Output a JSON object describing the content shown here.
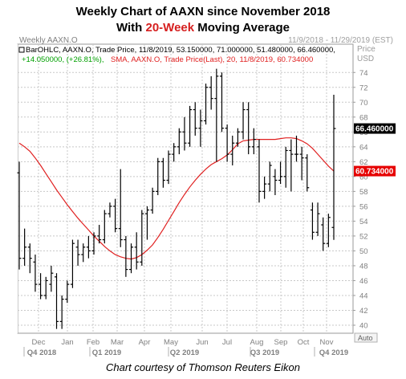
{
  "title_line1": "Weekly Chart of AAXN since November 2018",
  "title_line2_pre": "With ",
  "title_line2_hl": "20-Week",
  "title_line2_post": " Moving Average",
  "panel_label": "Weekly AAXN.O",
  "date_range": "11/9/2018 - 11/29/2019 (EST)",
  "legend_ohlc_line1": "BarOHLC, AAXN.O, Trade Price, 11/8/2019, 53.150000, 71.000000, 51.480000, 66.460000,",
  "legend_ohlc_line2": "+14.050000, (+26.81%),",
  "legend_sma": "SMA, AAXN.O, Trade Price(Last),  20,  11/8/2019, 60.734000",
  "price_header": "Price",
  "currency": "USD",
  "auto_label": "Auto",
  "credit": "Chart courtesy of Thomson Reuters Eikon",
  "colors": {
    "sma": "#e02020",
    "bars": "#000000",
    "grid": "#c8c8c8",
    "sma_tag": "#e60000"
  },
  "chart_data": {
    "type": "ohlc",
    "ylim": [
      40,
      75
    ],
    "y_ticks": [
      "40",
      "42",
      "44",
      "46",
      "48",
      "50",
      "52",
      "54",
      "56",
      "58",
      "60",
      "62",
      "64",
      "66",
      "68",
      "70",
      "72",
      "74"
    ],
    "x_month_labels": [
      "Dec",
      "Jan",
      "Feb",
      "Mar",
      "Apr",
      "May",
      "Jun",
      "Jul",
      "Aug",
      "Sep",
      "Oct",
      "Nov"
    ],
    "x_quarter_labels": [
      "Q4 2018",
      "Q1 2019",
      "Q2 2019",
      "Q3 2019",
      "Q4 2019"
    ],
    "last_price": "66.460000",
    "sma_value": "60.734000",
    "series": [
      {
        "name": "BarOHLC",
        "bars": [
          [
            60.5,
            62.0,
            47.5,
            49.0
          ],
          [
            49.0,
            53.0,
            48.0,
            50.5
          ],
          [
            50.5,
            51.0,
            47.0,
            49.0
          ],
          [
            48.5,
            49.5,
            44.5,
            45.5
          ],
          [
            45.5,
            47.0,
            43.5,
            44.0
          ],
          [
            44.0,
            46.5,
            43.5,
            46.0
          ],
          [
            45.5,
            48.0,
            44.5,
            47.0
          ],
          [
            46.5,
            47.0,
            39.5,
            40.5
          ],
          [
            40.5,
            44.0,
            39.5,
            43.5
          ],
          [
            43.5,
            46.0,
            43.0,
            45.5
          ],
          [
            45.5,
            51.5,
            45.0,
            51.0
          ],
          [
            50.5,
            51.5,
            48.0,
            49.5
          ],
          [
            49.5,
            51.0,
            48.5,
            50.5
          ],
          [
            50.5,
            52.0,
            49.0,
            50.0
          ],
          [
            50.0,
            52.5,
            49.5,
            52.0
          ],
          [
            52.0,
            53.5,
            51.0,
            51.5
          ],
          [
            51.5,
            55.5,
            51.0,
            55.0
          ],
          [
            55.0,
            56.5,
            54.5,
            56.0
          ],
          [
            56.0,
            57.0,
            52.5,
            53.0
          ],
          [
            53.0,
            61.0,
            50.5,
            51.5
          ],
          [
            51.5,
            52.0,
            46.5,
            47.5
          ],
          [
            47.5,
            51.0,
            47.0,
            50.5
          ],
          [
            50.5,
            52.5,
            47.5,
            48.5
          ],
          [
            48.5,
            55.5,
            48.0,
            55.0
          ],
          [
            55.0,
            56.0,
            51.5,
            55.5
          ],
          [
            55.5,
            58.5,
            55.0,
            58.0
          ],
          [
            58.0,
            62.5,
            57.5,
            62.0
          ],
          [
            62.0,
            62.5,
            58.5,
            59.5
          ],
          [
            59.5,
            63.5,
            59.0,
            63.0
          ],
          [
            63.0,
            64.5,
            62.0,
            64.0
          ],
          [
            64.0,
            66.5,
            63.0,
            66.0
          ],
          [
            66.0,
            68.0,
            63.5,
            64.5
          ],
          [
            64.5,
            69.5,
            64.0,
            69.0
          ],
          [
            69.0,
            70.0,
            65.5,
            66.5
          ],
          [
            66.5,
            69.0,
            64.0,
            67.5
          ],
          [
            67.5,
            72.5,
            67.0,
            72.0
          ],
          [
            72.0,
            73.5,
            69.0,
            70.5
          ],
          [
            70.5,
            74.5,
            62.0,
            73.5
          ],
          [
            73.5,
            74.0,
            66.0,
            66.5
          ],
          [
            66.5,
            67.0,
            62.0,
            63.0
          ],
          [
            63.0,
            65.5,
            61.5,
            64.5
          ],
          [
            64.5,
            66.5,
            64.0,
            66.0
          ],
          [
            66.0,
            70.0,
            65.0,
            69.0
          ],
          [
            69.0,
            70.0,
            63.0,
            64.0
          ],
          [
            64.0,
            66.5,
            63.0,
            65.0
          ],
          [
            64.0,
            65.0,
            56.5,
            58.0
          ],
          [
            58.0,
            60.0,
            57.0,
            59.0
          ],
          [
            59.0,
            62.0,
            58.0,
            61.5
          ],
          [
            60.0,
            61.0,
            57.5,
            59.5
          ],
          [
            59.5,
            62.0,
            59.0,
            60.0
          ],
          [
            60.0,
            64.0,
            58.5,
            63.5
          ],
          [
            63.5,
            65.0,
            58.0,
            63.0
          ],
          [
            63.0,
            65.5,
            62.0,
            63.0
          ],
          [
            63.0,
            64.0,
            59.5,
            62.5
          ],
          [
            62.5,
            63.0,
            58.0,
            58.5
          ],
          [
            55.5,
            56.5,
            51.5,
            52.5
          ],
          [
            52.5,
            56.5,
            52.0,
            55.0
          ],
          [
            53.5,
            54.5,
            50.0,
            51.0
          ],
          [
            51.0,
            55.0,
            50.5,
            54.5
          ],
          [
            53.15,
            71.0,
            51.48,
            66.46
          ]
        ]
      },
      {
        "name": "SMA",
        "values": [
          64.5,
          64.0,
          63.4,
          62.5,
          61.5,
          60.4,
          59.3,
          58.2,
          57.2,
          56.2,
          55.3,
          54.4,
          53.6,
          52.8,
          52.0,
          51.3,
          50.6,
          50.0,
          49.5,
          49.2,
          49.0,
          48.9,
          49.1,
          49.5,
          50.1,
          50.8,
          51.8,
          52.9,
          54.1,
          55.3,
          56.5,
          57.6,
          58.6,
          59.5,
          60.3,
          61.0,
          61.6,
          62.0,
          62.4,
          62.9,
          63.6,
          64.4,
          64.8,
          64.9,
          65.0,
          65.0,
          65.0,
          65.0,
          65.0,
          65.1,
          65.2,
          65.2,
          65.1,
          64.8,
          64.4,
          63.8,
          63.0,
          62.2,
          61.4,
          60.73
        ]
      }
    ]
  }
}
